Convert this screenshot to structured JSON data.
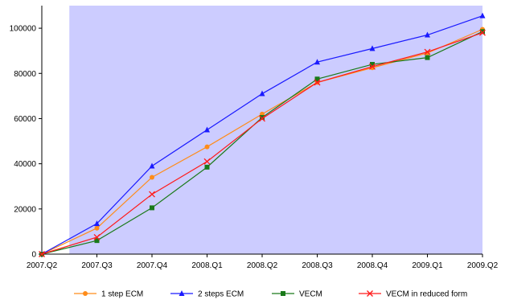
{
  "chart_data": {
    "type": "line",
    "title": "",
    "xlabel": "",
    "ylabel": "",
    "categories": [
      "2007.Q2",
      "2007.Q3",
      "2007.Q4",
      "2008.Q1",
      "2008.Q2",
      "2008.Q3",
      "2008.Q4",
      "2009.Q1",
      "2009.Q2"
    ],
    "ylim": [
      0,
      110000
    ],
    "yticks": [
      0,
      20000,
      40000,
      60000,
      80000,
      100000
    ],
    "grid": false,
    "shaded_region": {
      "from_x": 0.5,
      "to_x": 8,
      "color": "#ccccff"
    },
    "legend": {
      "position": "bottom"
    },
    "series": [
      {
        "name": "1 step ECM",
        "color": "#ff8c1a",
        "marker": "circle",
        "values": [
          0,
          11500,
          34000,
          47500,
          62000,
          76000,
          82500,
          89000,
          99500
        ]
      },
      {
        "name": "2 steps ECM",
        "color": "#1a1aff",
        "marker": "triangle",
        "values": [
          0,
          13500,
          39000,
          55000,
          71000,
          85000,
          91000,
          97000,
          105500
        ]
      },
      {
        "name": "VECM",
        "color": "#1a7a1a",
        "marker": "square",
        "values": [
          0,
          6000,
          20500,
          38500,
          60500,
          77500,
          84000,
          87000,
          98500
        ]
      },
      {
        "name": "VECM in reduced form",
        "color": "#ff1a1a",
        "marker": "x",
        "values": [
          0,
          7500,
          26500,
          41000,
          60000,
          76000,
          83000,
          89500,
          98000
        ]
      }
    ]
  }
}
